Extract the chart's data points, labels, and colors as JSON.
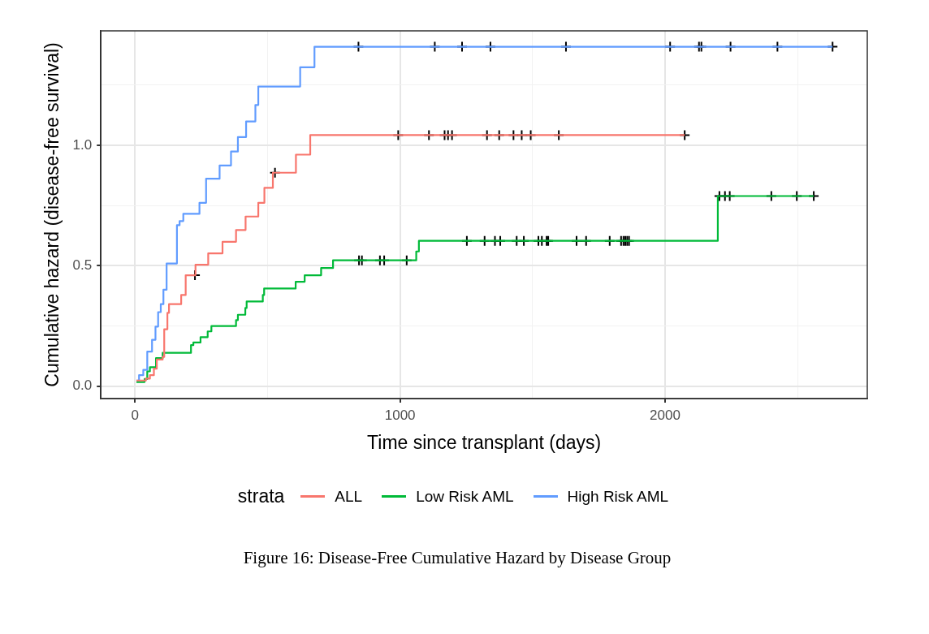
{
  "chart_data": {
    "type": "step",
    "xlabel": "Time since transplant (days)",
    "ylabel": "Cumulative hazard (disease-free survival)",
    "legend_title": "strata",
    "legend": "bottom",
    "grid": true,
    "xlim": [
      -129,
      2763
    ],
    "ylim": [
      -0.052,
      1.475
    ],
    "xticks": [
      0,
      {
        "value": 500,
        "label": null
      },
      1000,
      {
        "value": 1500,
        "label": null
      },
      2000,
      {
        "value": 2500,
        "label": null
      }
    ],
    "yticks": [
      {
        "value": 0,
        "label": "0.0"
      },
      {
        "value": 0.25,
        "label": null
      },
      0.5,
      {
        "value": 0.75,
        "label": null
      },
      {
        "value": 1,
        "label": "1.0"
      },
      {
        "value": 1.25,
        "label": null
      }
    ],
    "series": [
      {
        "name": "ALL",
        "color": "#f8766d",
        "x": [
          5,
          41,
          56,
          71,
          82,
          104,
          110,
          122,
          128,
          174,
          191,
          228,
          276,
          330,
          381,
          417,
          465,
          488,
          520,
          607,
          661,
          2074
        ],
        "values": [
          0.023,
          0.031,
          0.045,
          0.072,
          0.11,
          0.121,
          0.236,
          0.304,
          0.34,
          0.378,
          0.46,
          0.504,
          0.551,
          0.599,
          0.648,
          0.704,
          0.761,
          0.823,
          0.886,
          0.961,
          1.042,
          1.042
        ]
      },
      {
        "name": "Low Risk AML",
        "color": "#00ba38",
        "x": [
          5,
          36,
          46,
          56,
          79,
          104,
          211,
          220,
          247,
          274,
          288,
          381,
          388,
          416,
          421,
          482,
          487,
          606,
          640,
          702,
          747,
          1061,
          1071,
          2199,
          2561
        ],
        "values": [
          0.017,
          0.029,
          0.061,
          0.078,
          0.116,
          0.138,
          0.17,
          0.181,
          0.203,
          0.227,
          0.249,
          0.274,
          0.296,
          0.324,
          0.351,
          0.378,
          0.405,
          0.433,
          0.46,
          0.49,
          0.522,
          0.559,
          0.603,
          0.789,
          0.789
        ]
      },
      {
        "name": "High Risk AML",
        "color": "#619cff",
        "x": [
          5,
          15,
          31,
          46,
          64,
          77,
          87,
          97,
          107,
          119,
          158,
          168,
          182,
          243,
          268,
          319,
          362,
          388,
          419,
          454,
          465,
          623,
          677,
          2632
        ],
        "values": [
          0.023,
          0.045,
          0.067,
          0.143,
          0.192,
          0.247,
          0.307,
          0.34,
          0.4,
          0.509,
          0.668,
          0.685,
          0.715,
          0.761,
          0.861,
          0.916,
          0.974,
          1.034,
          1.099,
          1.167,
          1.244,
          1.324,
          1.409,
          1.409
        ]
      },
      {
        "type": "scatter",
        "color": "#000000",
        "marker": "cross",
        "x": [
          226,
          528,
          993,
          1109,
          1168,
          1181,
          1196,
          1328,
          1374,
          1428,
          1459,
          1493,
          1599,
          2074
        ],
        "values": [
          0.46,
          0.886,
          1.042,
          1.042,
          1.042,
          1.042,
          1.042,
          1.042,
          1.042,
          1.042,
          1.042,
          1.042,
          1.042,
          1.042
        ]
      },
      {
        "type": "scatter",
        "color": "#000000",
        "marker": "cross",
        "x": [
          845,
          856,
          924,
          940,
          1025,
          1252,
          1319,
          1358,
          1378,
          1440,
          1467,
          1522,
          1535,
          1553,
          1559,
          1666,
          1702,
          1791,
          1834,
          1843,
          1850,
          1857,
          1864,
          2205,
          2226,
          2244,
          2401,
          2497,
          2561
        ],
        "values": [
          0.522,
          0.522,
          0.522,
          0.522,
          0.522,
          0.603,
          0.603,
          0.603,
          0.603,
          0.603,
          0.603,
          0.603,
          0.603,
          0.603,
          0.603,
          0.603,
          0.603,
          0.603,
          0.603,
          0.603,
          0.603,
          0.603,
          0.603,
          0.789,
          0.789,
          0.789,
          0.789,
          0.789,
          0.789
        ]
      },
      {
        "type": "scatter",
        "color": "#000000",
        "marker": "cross",
        "x": [
          843,
          1131,
          1234,
          1341,
          1626,
          2019,
          2128,
          2137,
          2247,
          2424,
          2632
        ],
        "values": [
          1.409,
          1.409,
          1.409,
          1.409,
          1.409,
          1.409,
          1.409,
          1.409,
          1.409,
          1.409,
          1.409
        ]
      }
    ],
    "annotations": [
      "Figure 16: Disease-Free Cumulative Hazard by Disease Group"
    ]
  }
}
